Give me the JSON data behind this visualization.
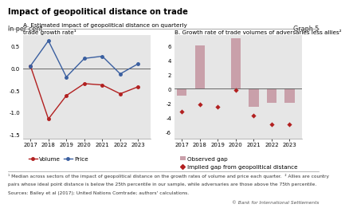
{
  "title": "Impact of geopolitical distance on trade",
  "subtitle_left": "In per cent",
  "subtitle_right": "Graph 5",
  "panel_A_title": "A. Estimated impact of geopolitical distance on quarterly\ntrade growth rate¹",
  "panel_B_title": "B. Growth rate of trade volumes of adversaries less allies²",
  "panel_A": {
    "years": [
      2017,
      2018,
      2019,
      2020,
      2021,
      2022,
      2023
    ],
    "volume": [
      0.05,
      -1.15,
      -0.62,
      -0.35,
      -0.38,
      -0.58,
      -0.42
    ],
    "price": [
      0.05,
      0.62,
      -0.2,
      0.22,
      0.27,
      -0.13,
      0.1
    ],
    "ylim": [
      -1.6,
      0.75
    ],
    "yticks": [
      -1.5,
      -1.0,
      -0.5,
      0.0,
      0.5
    ],
    "ytick_labels": [
      "-1.5",
      "-1.0",
      "-0.5",
      "0.0",
      "0.5"
    ],
    "hline": 0.0
  },
  "panel_B": {
    "years": [
      2017,
      2018,
      2019,
      2020,
      2021,
      2022,
      2023
    ],
    "bars": [
      -1.0,
      6.0,
      0.0,
      7.0,
      -2.5,
      -2.0,
      -2.0
    ],
    "dots": [
      -3.2,
      -2.2,
      -2.5,
      -0.2,
      -3.8,
      -5.0,
      -5.0
    ],
    "ylim": [
      -7.0,
      7.5
    ],
    "yticks": [
      -6,
      -4,
      -2,
      0,
      2,
      4,
      6
    ],
    "ytick_labels": [
      "-6",
      "-4",
      "-2",
      "0",
      "2",
      "4",
      "6"
    ],
    "hline": 0.0
  },
  "footnote1": "¹ Median across sectors of the impact of geopolitical distance on the growth rates of volume and price each quarter.  ² Allies are country",
  "footnote2": "pairs whose ideal point distance is below the 25th percentile in our sample, while adversaries are those above the 75th percentile.",
  "sources": "Sources: Bailey et al (2017); United Nations Comtrade; authors' calculations.",
  "bis_text": "© Bank for International Settlements",
  "bg_color": "#e6e6e6",
  "bar_color": "#c9a0aa",
  "volume_color": "#b22020",
  "price_color": "#3a5fa0",
  "dot_color": "#b22020",
  "hline_color": "#555555"
}
